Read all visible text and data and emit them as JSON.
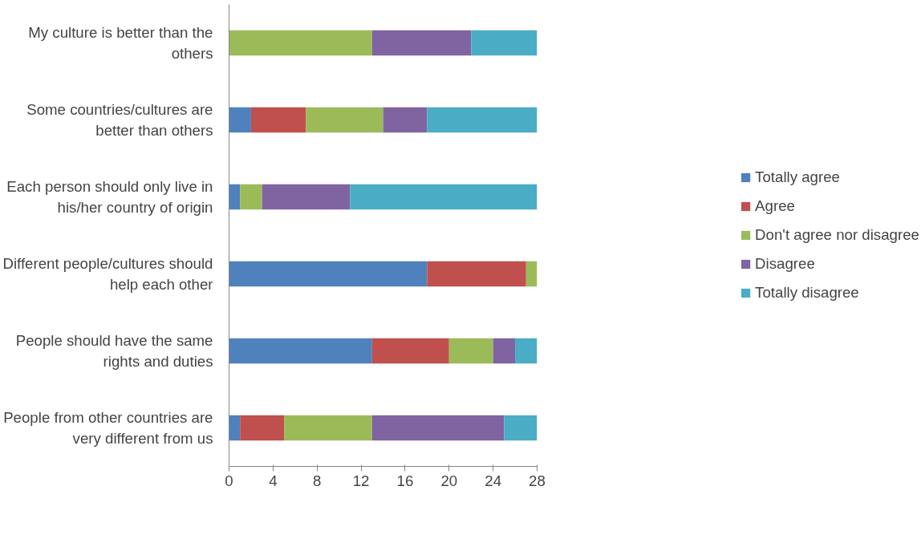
{
  "chart_data": {
    "type": "bar",
    "orientation": "horizontal",
    "stacked": true,
    "categories": [
      "My culture is better than the others",
      "Some countries/cultures are better than others",
      "Each person should only live in his/her country of origin",
      "Different people/cultures should help each other",
      "People should have the same rights and duties",
      "People from other countries are very different from us"
    ],
    "series": [
      {
        "name": "Totally agree",
        "color": "#4f81bd",
        "values": [
          0,
          2,
          1,
          18,
          13,
          1
        ]
      },
      {
        "name": "Agree",
        "color": "#c0504d",
        "values": [
          0,
          5,
          0,
          9,
          7,
          4
        ]
      },
      {
        "name": "Don't agree nor disagree",
        "color": "#9bbb59",
        "values": [
          13,
          7,
          2,
          1,
          4,
          8
        ]
      },
      {
        "name": "Disagree",
        "color": "#8064a2",
        "values": [
          9,
          4,
          8,
          0,
          2,
          12
        ]
      },
      {
        "name": "Totally disagree",
        "color": "#4bacc6",
        "values": [
          6,
          10,
          17,
          0,
          2,
          3
        ]
      }
    ],
    "xlim": [
      0,
      28
    ],
    "xticks": [
      0,
      4,
      8,
      12,
      16,
      20,
      24,
      28
    ],
    "grid": false,
    "legend": "right"
  }
}
